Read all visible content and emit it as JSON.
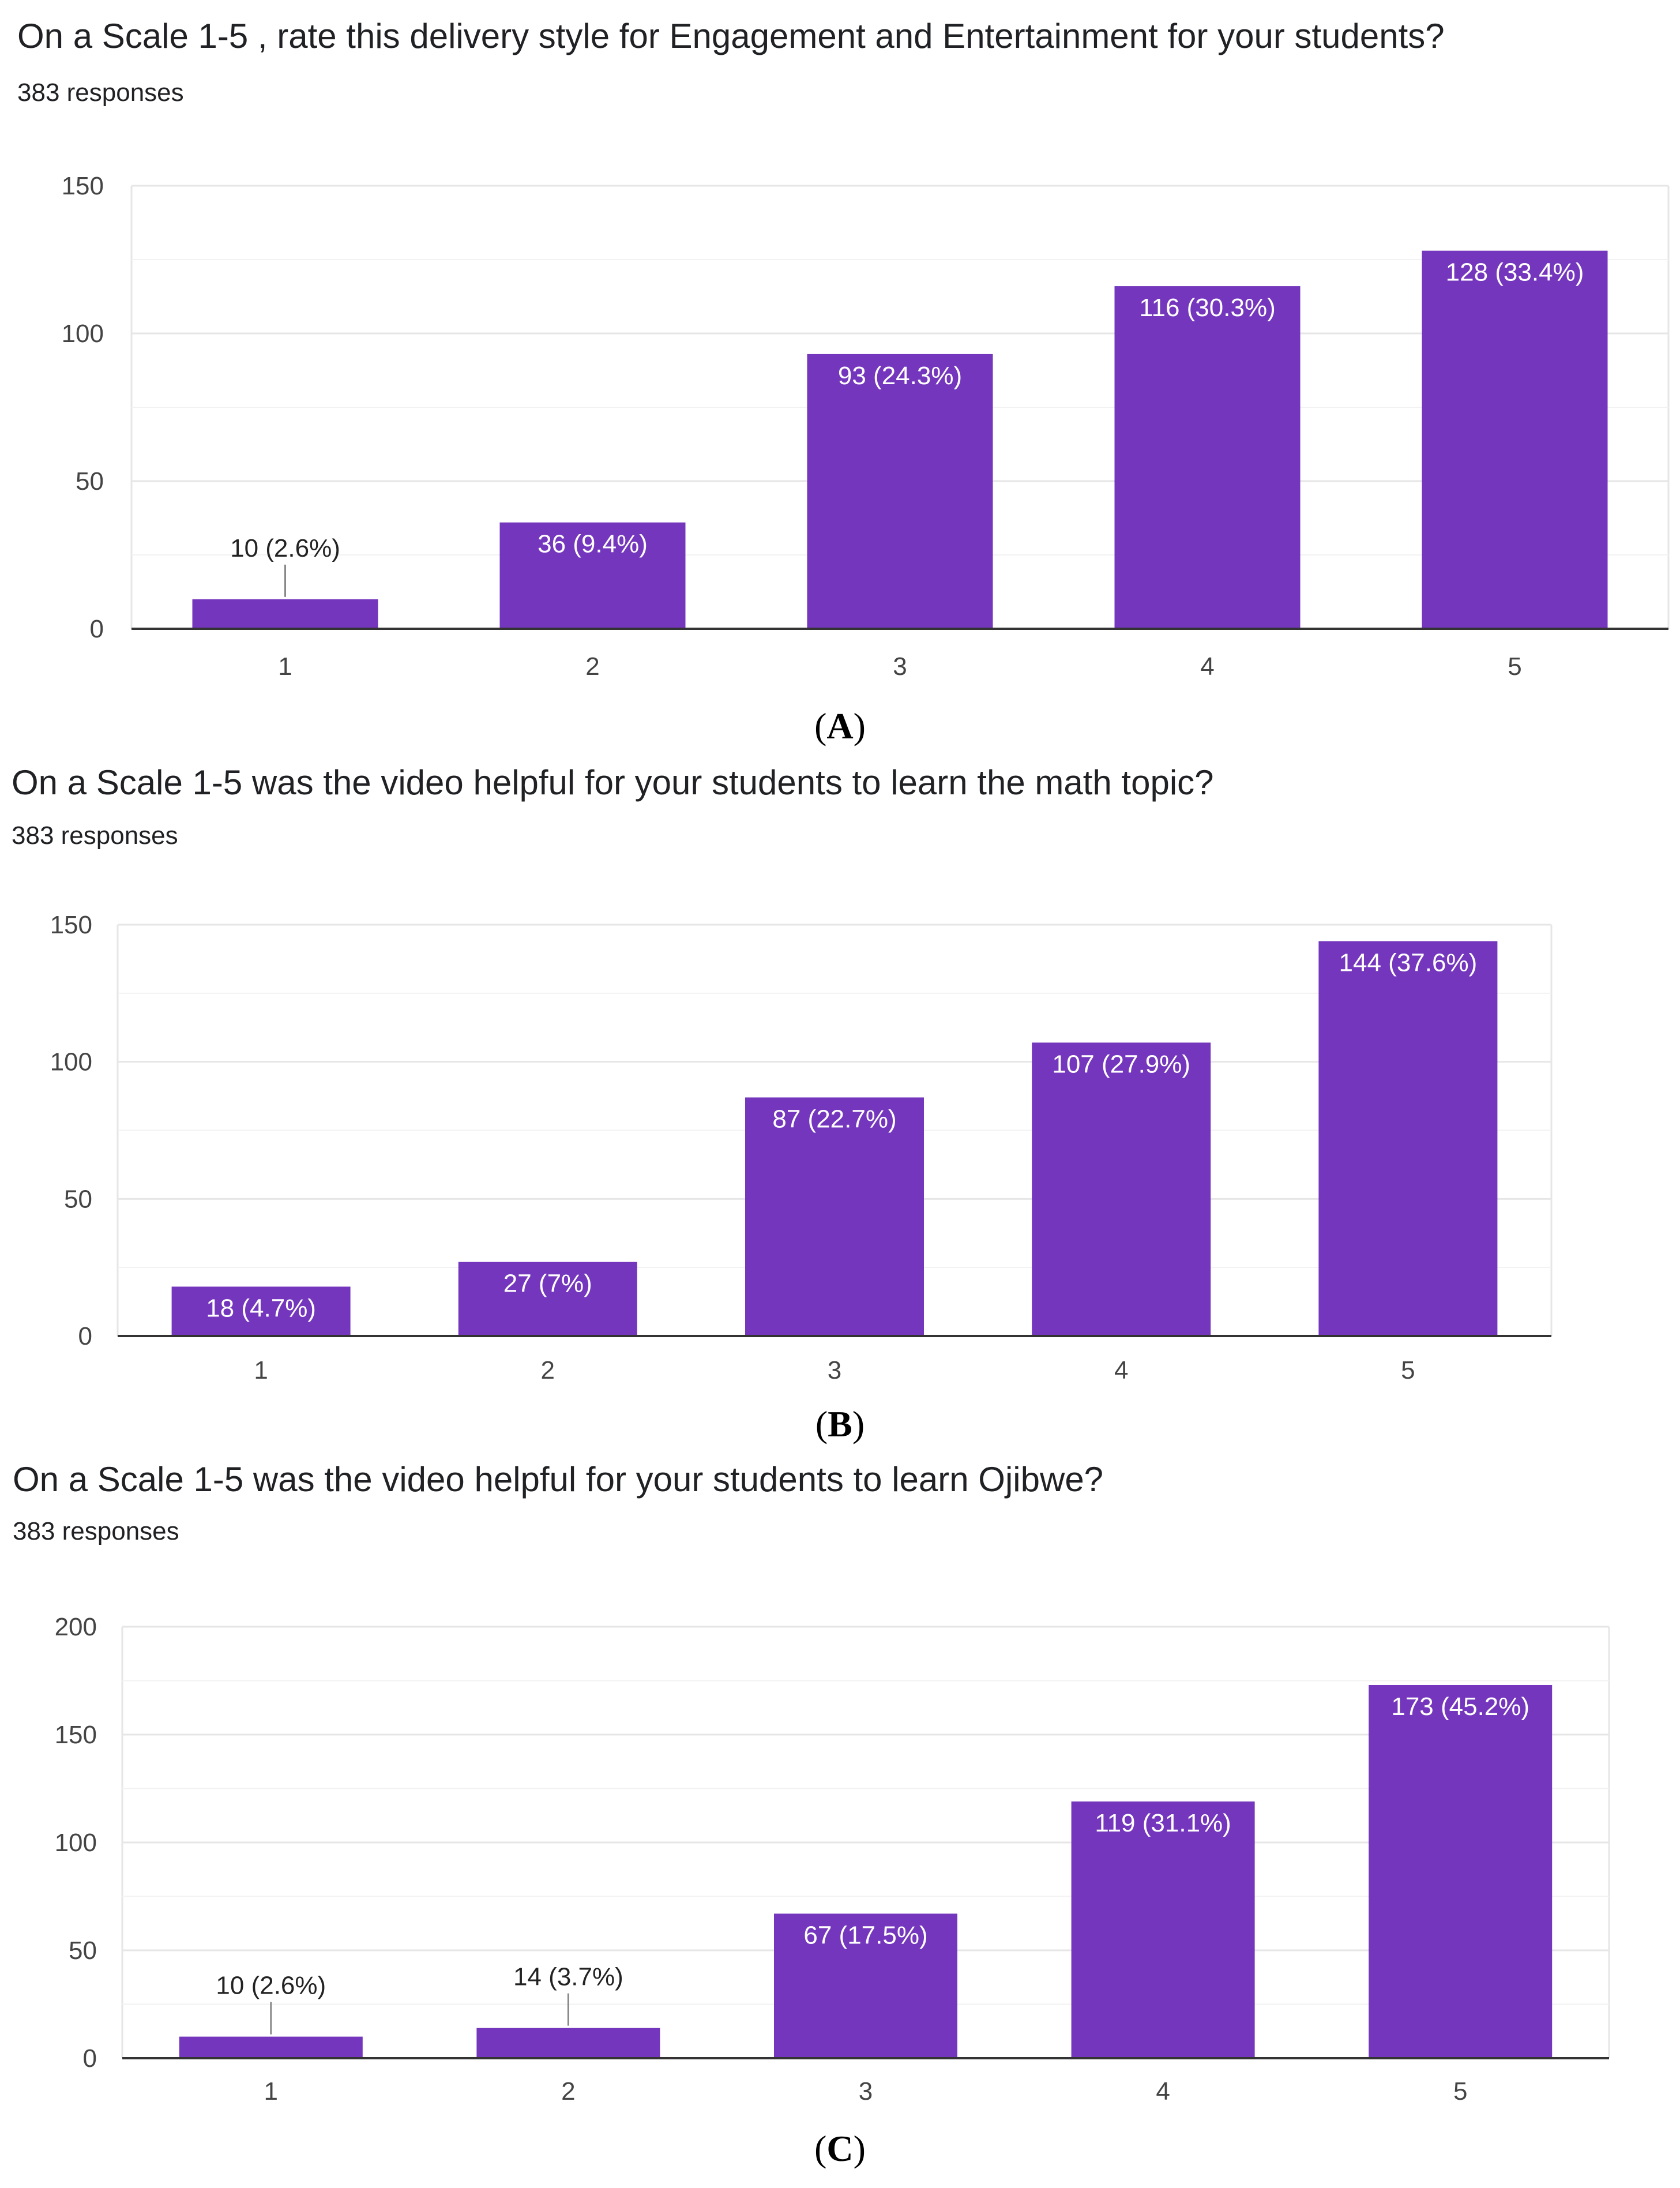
{
  "colors": {
    "bar": "#7436BC",
    "grid": "#E6E6E6",
    "axis": "#333333",
    "leader": "#888888"
  },
  "chart_data": [
    {
      "type": "bar",
      "panel": "A",
      "title": "On a Scale 1-5 , rate this delivery style for Engagement and Entertainment for your students?",
      "subtitle": "383 responses",
      "categories": [
        "1",
        "2",
        "3",
        "4",
        "5"
      ],
      "values": [
        10,
        36,
        93,
        116,
        128
      ],
      "labels": [
        "10 (2.6%)",
        "36 (9.4%)",
        "93 (24.3%)",
        "116 (30.3%)",
        "128 (33.4%)"
      ],
      "yticks": [
        "0",
        "50",
        "100",
        "150"
      ],
      "ylim": [
        0,
        150
      ],
      "grid": true
    },
    {
      "type": "bar",
      "panel": "B",
      "title": "On a Scale 1-5 was the video helpful for your students to learn the math topic?",
      "subtitle": "383 responses",
      "categories": [
        "1",
        "2",
        "3",
        "4",
        "5"
      ],
      "values": [
        18,
        27,
        87,
        107,
        144
      ],
      "labels": [
        "18 (4.7%)",
        "27 (7%)",
        "87 (22.7%)",
        "107 (27.9%)",
        "144 (37.6%)"
      ],
      "yticks": [
        "0",
        "50",
        "100",
        "150"
      ],
      "ylim": [
        0,
        150
      ],
      "grid": true
    },
    {
      "type": "bar",
      "panel": "C",
      "title": "On a Scale 1-5 was the video helpful for your students to learn Ojibwe?",
      "subtitle": "383 responses",
      "categories": [
        "1",
        "2",
        "3",
        "4",
        "5"
      ],
      "values": [
        10,
        14,
        67,
        119,
        173
      ],
      "labels": [
        "10 (2.6%)",
        "14 (3.7%)",
        "67 (17.5%)",
        "119 (31.1%)",
        "173 (45.2%)"
      ],
      "yticks": [
        "0",
        "50",
        "100",
        "150",
        "200"
      ],
      "ylim": [
        0,
        200
      ],
      "grid": true
    }
  ]
}
